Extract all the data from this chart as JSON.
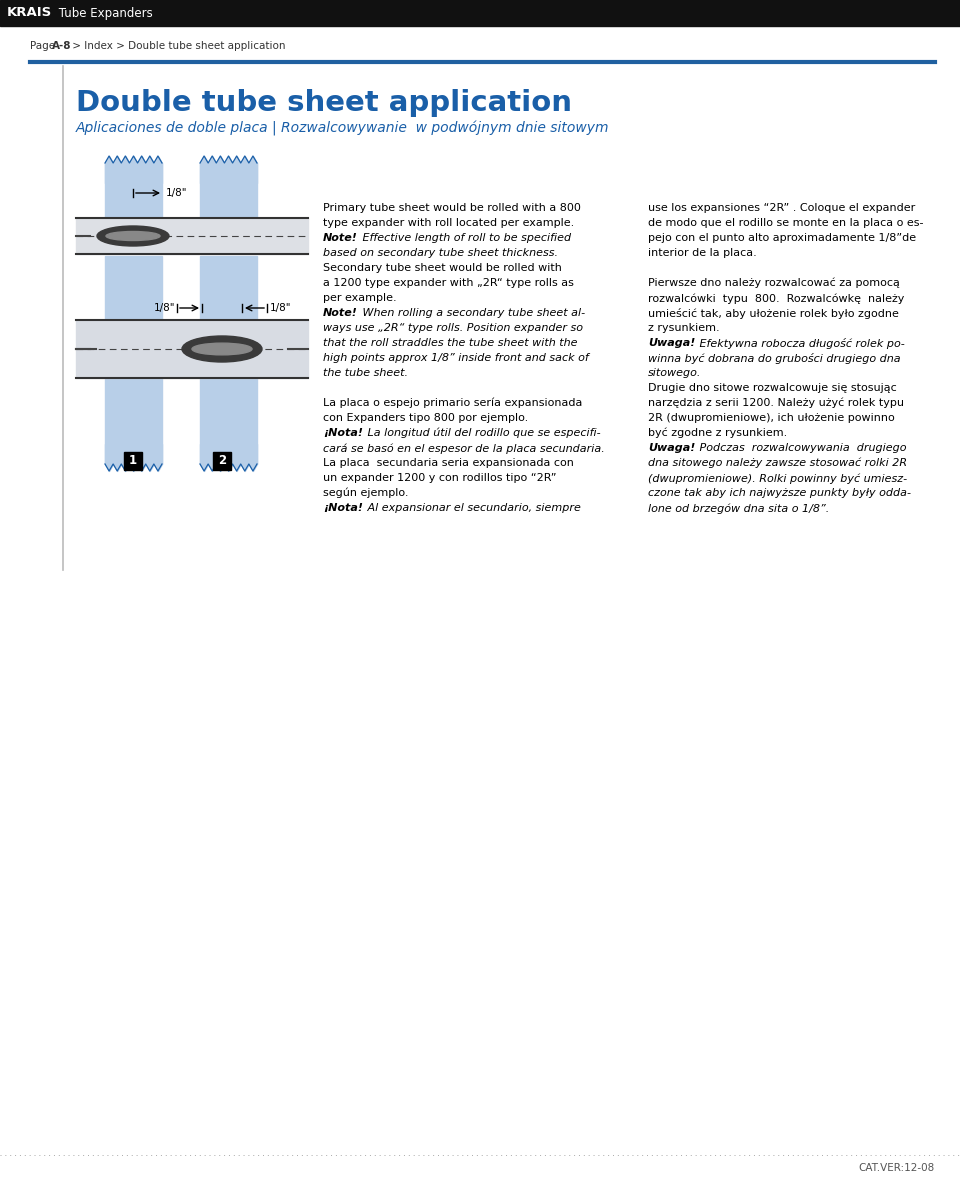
{
  "bg_color": "#ffffff",
  "header_bg": "#111111",
  "header_text_krais": "KRAIS",
  "header_text_rest": " Tube Expanders",
  "breadcrumb": "Page A-8 > Index > Double tube sheet application",
  "title": "Double tube sheet application",
  "subtitle": "Aplicaciones de doble placa | Rozwalcowywanie  w podwójnym dnie sitowym",
  "title_color": "#1a5fa8",
  "subtitle_color": "#1a5fa8",
  "accent_line_color": "#2060a0",
  "tube_sheet_fill": "#b8cfe8",
  "tube_sheet_stroke": "#1a5fa8",
  "tube_fill_top": "#e0e0e0",
  "tube_fill_bot": "#d8dde8",
  "tube_stroke": "#444444",
  "roll_fill": "#555555",
  "footer_text": "CAT.VER:12-08",
  "col1_lines": [
    {
      "text": "Primary tube sheet would be rolled with a 800",
      "bold_prefix": "",
      "italic": false
    },
    {
      "text": "type expander with roll located per example.",
      "bold_prefix": "",
      "italic": false
    },
    {
      "text": "Note!",
      "bold_prefix": "Note!",
      "rest": " Effective length of roll to be specified",
      "italic": true
    },
    {
      "text": "based on secondary tube sheet thickness.",
      "bold_prefix": "",
      "italic": true
    },
    {
      "text": "Secondary tube sheet would be rolled with",
      "bold_prefix": "",
      "italic": false
    },
    {
      "text": "a 1200 type expander with „2R“ type rolls as",
      "bold_prefix": "",
      "italic": false
    },
    {
      "text": "per example.",
      "bold_prefix": "",
      "italic": false
    },
    {
      "text": "Note!",
      "bold_prefix": "Note!",
      "rest": " When rolling a secondary tube sheet al-",
      "italic": true
    },
    {
      "text": "ways use „2R“ type rolls. Position expander so",
      "bold_prefix": "",
      "italic": true
    },
    {
      "text": "that the roll straddles the tube sheet with the",
      "bold_prefix": "",
      "italic": true
    },
    {
      "text": "high points approx 1/8” inside front and sack of",
      "bold_prefix": "",
      "italic": true
    },
    {
      "text": "the tube sheet.",
      "bold_prefix": "",
      "italic": true
    },
    {
      "text": "",
      "bold_prefix": "",
      "italic": false
    },
    {
      "text": "La placa o espejo primario sería expansionada",
      "bold_prefix": "",
      "italic": false
    },
    {
      "text": "con Expanders tipo 800 por ejemplo.",
      "bold_prefix": "",
      "italic": false
    },
    {
      "text": "¡Nota!",
      "bold_prefix": "¡Nota!",
      "rest": " La longitud útil del rodillo que se especifi-",
      "italic": true
    },
    {
      "text": "cará se basó en el espesor de la placa secundaria.",
      "bold_prefix": "",
      "italic": true
    },
    {
      "text": "La placa  secundaria seria expansionada con",
      "bold_prefix": "",
      "italic": false
    },
    {
      "text": "un expander 1200 y con rodillos tipo “2R”",
      "bold_prefix": "",
      "italic": false
    },
    {
      "text": "según ejemplo.",
      "bold_prefix": "",
      "italic": false
    },
    {
      "text": "¡Nota!",
      "bold_prefix": "¡Nota!",
      "rest": " Al expansionar el secundario, siempre",
      "italic": true
    }
  ],
  "col2_lines": [
    {
      "text": "use los expansiones “2R” . Coloque el expander",
      "bold_prefix": "",
      "italic": false
    },
    {
      "text": "de modo que el rodillo se monte en la placa o es-",
      "bold_prefix": "",
      "italic": false
    },
    {
      "text": "pejo con el punto alto aproximadamente 1/8”de",
      "bold_prefix": "",
      "italic": false
    },
    {
      "text": "interior de la placa.",
      "bold_prefix": "",
      "italic": false
    },
    {
      "text": "",
      "bold_prefix": "",
      "italic": false
    },
    {
      "text": "Pierwsze dno należy rozwalcować za pomocą",
      "bold_prefix": "",
      "italic": false
    },
    {
      "text": "rozwalcówki  typu  800.  Rozwalcówkę  należy",
      "bold_prefix": "",
      "italic": false
    },
    {
      "text": "umieścić tak, aby ułożenie rolek było zgodne",
      "bold_prefix": "",
      "italic": false
    },
    {
      "text": "z rysunkiem.",
      "bold_prefix": "",
      "italic": false
    },
    {
      "text": "Uwaga!",
      "bold_prefix": "Uwaga!",
      "rest": " Efektywna robocza długość rolek po-",
      "italic": true
    },
    {
      "text": "winna być dobrana do grubości drugiego dna",
      "bold_prefix": "",
      "italic": true
    },
    {
      "text": "sitowego.",
      "bold_prefix": "",
      "italic": true
    },
    {
      "text": "Drugie dno sitowe rozwalcowuje się stosując",
      "bold_prefix": "",
      "italic": false
    },
    {
      "text": "narzędzia z serii 1200. Należy użyć rolek typu",
      "bold_prefix": "",
      "italic": false
    },
    {
      "text": "2R (dwupromieniowe), ich ułożenie powinno",
      "bold_prefix": "",
      "italic": false
    },
    {
      "text": "być zgodne z rysunkiem.",
      "bold_prefix": "",
      "italic": false
    },
    {
      "text": "Uwaga!",
      "bold_prefix": "Uwaga!",
      "rest": " Podczas  rozwalcowywania  drugiego",
      "italic": true
    },
    {
      "text": "dna sitowego należy zawsze stosować rolki 2R",
      "bold_prefix": "",
      "italic": true
    },
    {
      "text": "(dwupromieniowe). Rolki powinny być umiesz-",
      "bold_prefix": "",
      "italic": true
    },
    {
      "text": "czone tak aby ich najwyższe punkty były odda-",
      "bold_prefix": "",
      "italic": true
    },
    {
      "text": "lone od brzegów dna sita o 1/8”.",
      "bold_prefix": "",
      "italic": true
    }
  ]
}
